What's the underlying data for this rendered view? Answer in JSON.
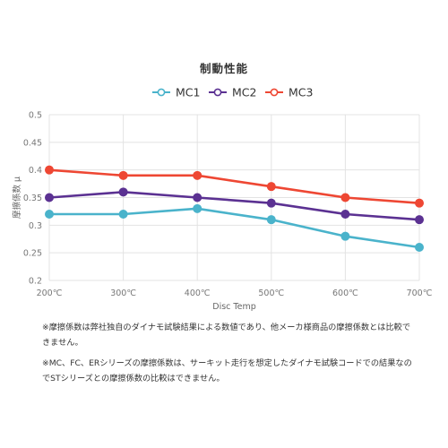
{
  "chart_data": {
    "type": "line",
    "title": "制動性能",
    "xlabel": "Disc Temp",
    "ylabel": "摩擦係数 μ",
    "categories": [
      "200℃",
      "300℃",
      "400℃",
      "500℃",
      "600℃",
      "700℃"
    ],
    "ylim": [
      0.2,
      0.5
    ],
    "yticks": [
      "0.2",
      "0.25",
      "0.3",
      "0.35",
      "0.4",
      "0.45",
      "0.5"
    ],
    "grid": true,
    "legend_position": "top",
    "series": [
      {
        "name": "MC1",
        "color": "#4ab3cb",
        "values": [
          0.32,
          0.32,
          0.33,
          0.31,
          0.28,
          0.26
        ]
      },
      {
        "name": "MC2",
        "color": "#5b3192",
        "values": [
          0.35,
          0.36,
          0.35,
          0.34,
          0.32,
          0.31
        ]
      },
      {
        "name": "MC3",
        "color": "#ee4733",
        "values": [
          0.4,
          0.39,
          0.39,
          0.37,
          0.35,
          0.34
        ]
      }
    ]
  },
  "notes": {
    "note1": "※摩擦係数は弊社独自のダイナモ試験結果による数値であり、他メーカ様商品の摩擦係数とは比較できません。",
    "note2": "※MC、FC、ERシリーズの摩擦係数は、サーキット走行を想定したダイナモ試験コードでの結果なのでSTシリーズとの摩擦係数の比較はできません。"
  }
}
